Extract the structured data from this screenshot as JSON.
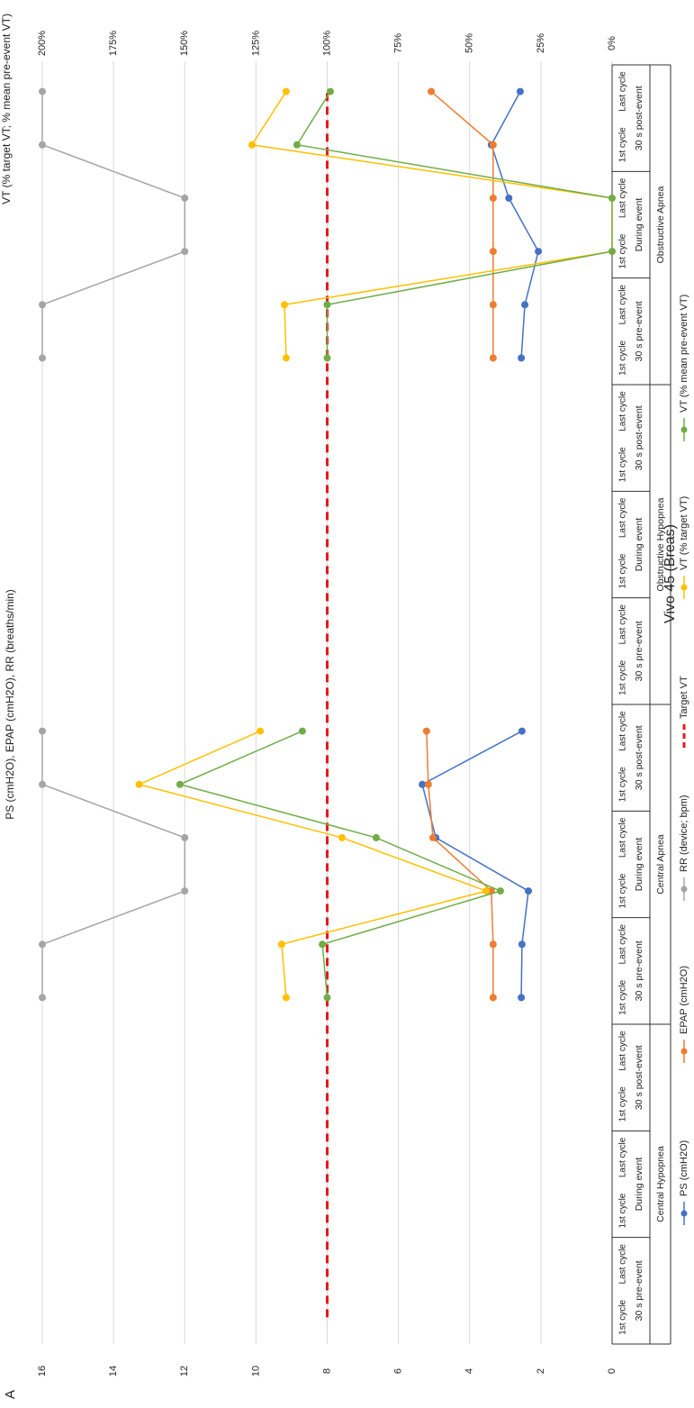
{
  "chart_data": {
    "type": "line",
    "panel_label": "A",
    "title": "Vivo 45 (Breas)",
    "y_label": "PS (cmH2O), EPAP (cmH2O), RR (breaths/min)",
    "y2_label": "VT (% target VT; % mean pre-event VT)",
    "categories": [
      "1st cycle",
      "Last cycle",
      "1st cycle",
      "Last cycle",
      "1st cycle",
      "Last cycle",
      "1st cycle",
      "Last cycle",
      "1st cycle",
      "Last cycle",
      "1st cycle",
      "Last cycle",
      "1st cycle",
      "Last cycle",
      "1st cycle",
      "Last cycle",
      "1st cycle",
      "Last cycle",
      "1st cycle",
      "Last cycle",
      "1st cycle",
      "Last cycle",
      "1st cycle",
      "Last cycle"
    ],
    "periods": [
      "30 s pre-event",
      "During event",
      "30 s post-event",
      "30 s pre-event",
      "During event",
      "30 s post-event",
      "30 s pre-event",
      "During event",
      "30 s post-event",
      "30 s pre-event",
      "During event",
      "30 s post-event"
    ],
    "events": [
      "Central Hypopnea",
      "Central Apnea",
      "Obstructive Hypopnea",
      "Obstructive Apnea"
    ],
    "ylim": [
      0,
      16
    ],
    "yticks": [
      0,
      2,
      4,
      6,
      8,
      10,
      12,
      14,
      16
    ],
    "y2lim": [
      0,
      200
    ],
    "y2ticks": [
      {
        "value": 0,
        "label": "0%"
      },
      {
        "value": 25,
        "label": "25%"
      },
      {
        "value": 50,
        "label": "50%"
      },
      {
        "value": 75,
        "label": "75%"
      },
      {
        "value": 100,
        "label": "100%"
      },
      {
        "value": 125,
        "label": "125%"
      },
      {
        "value": 150,
        "label": "150%"
      },
      {
        "value": 175,
        "label": "175%"
      },
      {
        "value": 200,
        "label": "200%"
      }
    ],
    "grid": true,
    "series": [
      {
        "name": "PS (cmH2O)",
        "color": "#4472c4",
        "markers": true,
        "values": [
          null,
          null,
          null,
          null,
          null,
          null,
          2.55,
          2.53,
          2.35,
          4.95,
          5.33,
          2.53,
          null,
          null,
          null,
          null,
          null,
          null,
          2.55,
          2.45,
          2.07,
          2.9,
          3.39,
          2.58
        ]
      },
      {
        "name": "EPAP (cmH2O)",
        "color": "#ed7d31",
        "markers": true,
        "values": [
          null,
          null,
          null,
          null,
          null,
          null,
          3.34,
          3.34,
          3.39,
          5.03,
          5.16,
          5.21,
          null,
          null,
          null,
          null,
          null,
          null,
          3.34,
          3.34,
          3.34,
          3.34,
          3.34,
          5.08
        ]
      },
      {
        "name": "RR (device; bpm)",
        "color": "#a5a5a5",
        "markers": true,
        "values": [
          null,
          null,
          null,
          null,
          null,
          null,
          16,
          16,
          12,
          12,
          16,
          16,
          null,
          null,
          null,
          null,
          null,
          null,
          16,
          16,
          12,
          12,
          16,
          16
        ]
      },
      {
        "name": "Target VT",
        "color": "#e31a1c",
        "dashed": true,
        "markers": false,
        "axis": "y2",
        "values": [
          100,
          100,
          100,
          100,
          100,
          100,
          100,
          100,
          100,
          100,
          100,
          100,
          100,
          100,
          100,
          100,
          100,
          100,
          100,
          100,
          100,
          100,
          100,
          100
        ]
      },
      {
        "name": "VT (% target VT)",
        "color": "#ffc000",
        "markers": true,
        "axis": "y2",
        "values": [
          null,
          null,
          null,
          null,
          null,
          null,
          114.4,
          116,
          44.2,
          94.8,
          166,
          123.5,
          null,
          null,
          null,
          null,
          null,
          null,
          114.4,
          115,
          0,
          0,
          126.4,
          114.4
        ]
      },
      {
        "name": "VT (% mean pre-event VT)",
        "color": "#70ad47",
        "markers": true,
        "axis": "y2",
        "values": [
          null,
          null,
          null,
          null,
          null,
          null,
          100,
          101.7,
          39.2,
          82.8,
          151.7,
          108.7,
          null,
          null,
          null,
          null,
          null,
          null,
          100,
          100,
          0,
          0,
          110.6,
          98.9
        ]
      }
    ]
  }
}
